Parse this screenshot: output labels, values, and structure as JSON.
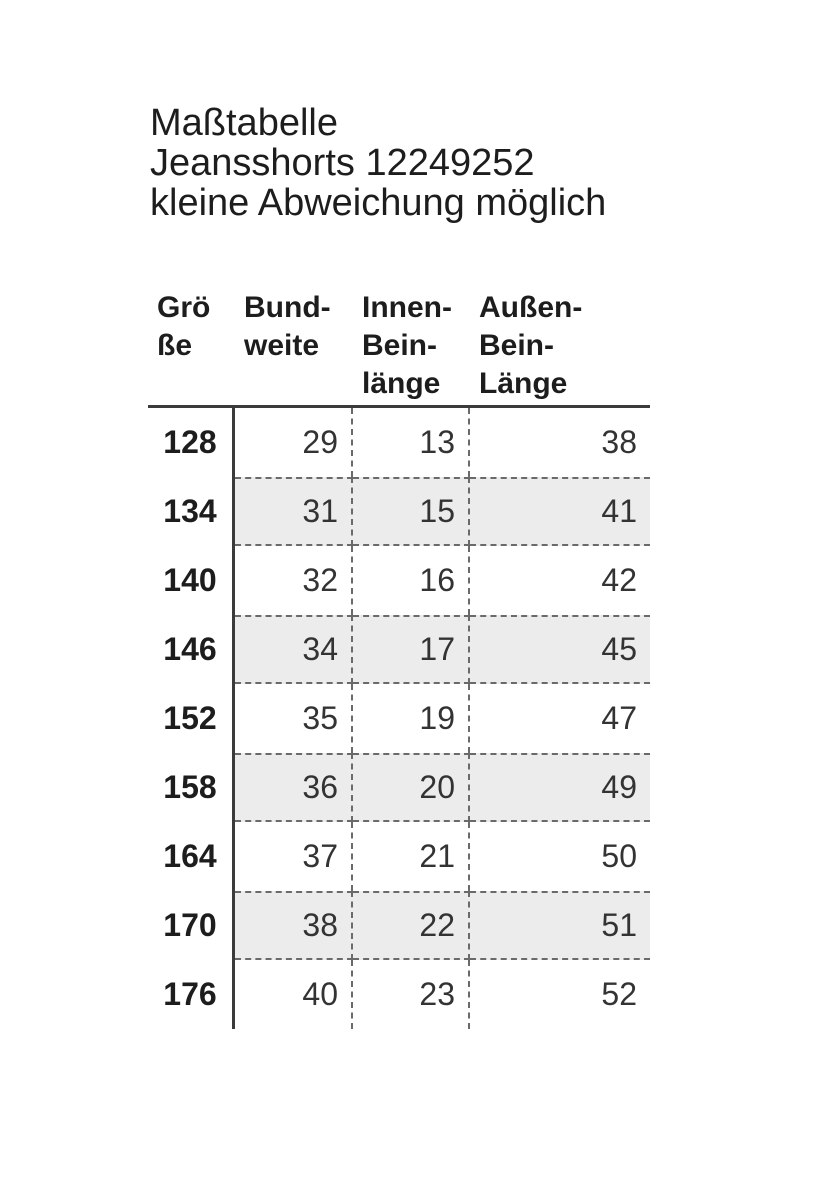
{
  "title": {
    "line1": "Maßtabelle",
    "line2": "Jeansshorts 12249252",
    "line3": "kleine Abweichung möglich"
  },
  "table": {
    "columns": [
      {
        "name": "Größe",
        "lines": [
          "Grö",
          "ße"
        ]
      },
      {
        "name": "Bundweite",
        "lines": [
          "Bund-",
          "weite"
        ]
      },
      {
        "name": "Innen-Beinlänge",
        "lines": [
          "Innen-",
          "Bein-",
          "länge"
        ]
      },
      {
        "name": "Außen-Bein-Länge",
        "lines": [
          "Außen-",
          "Bein-",
          "Länge"
        ]
      }
    ],
    "rows": [
      {
        "size": "128",
        "values": [
          "29",
          "13",
          "38"
        ]
      },
      {
        "size": "134",
        "values": [
          "31",
          "15",
          "41"
        ]
      },
      {
        "size": "140",
        "values": [
          "32",
          "16",
          "42"
        ]
      },
      {
        "size": "146",
        "values": [
          "34",
          "17",
          "45"
        ]
      },
      {
        "size": "152",
        "values": [
          "35",
          "19",
          "47"
        ]
      },
      {
        "size": "158",
        "values": [
          "36",
          "20",
          "49"
        ]
      },
      {
        "size": "164",
        "values": [
          "37",
          "21",
          "50"
        ]
      },
      {
        "size": "170",
        "values": [
          "38",
          "22",
          "51"
        ]
      },
      {
        "size": "176",
        "values": [
          "40",
          "23",
          "52"
        ]
      }
    ]
  },
  "colors": {
    "background": "#ffffff",
    "text": "#1d1d1d",
    "data_text": "#333333",
    "row_shading": "#ececec",
    "solid_line": "#3b3b3b",
    "dashed_line": "#6a6a6a"
  }
}
